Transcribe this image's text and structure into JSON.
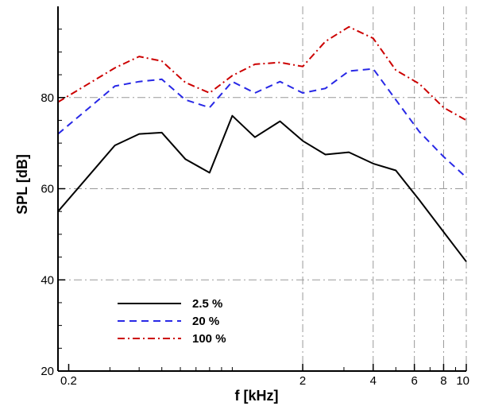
{
  "chart_data": {
    "type": "line",
    "xlabel": "f [kHz]",
    "ylabel": "SPL [dB]",
    "xscale": "log",
    "xlim": [
      0.18,
      10
    ],
    "ylim": [
      20,
      100
    ],
    "x_ticks": [
      {
        "value": 0.2,
        "label": "0.2"
      },
      {
        "value": 2,
        "label": "2"
      },
      {
        "value": 4,
        "label": "4"
      },
      {
        "value": 6,
        "label": "6"
      },
      {
        "value": 8,
        "label": "8"
      },
      {
        "value": 10,
        "label": "10"
      }
    ],
    "y_ticks": [
      {
        "value": 20,
        "label": "20"
      },
      {
        "value": 40,
        "label": "40"
      },
      {
        "value": 60,
        "label": "60"
      },
      {
        "value": 80,
        "label": "80"
      }
    ],
    "x_gridlines": [
      2,
      4,
      6,
      8,
      10
    ],
    "y_gridlines": [
      40,
      60,
      80
    ],
    "grid": true,
    "legend_position": "bottom-left",
    "series": [
      {
        "name": "2.5 %",
        "color": "#000000",
        "dash": "solid",
        "x": [
          0.18,
          0.315,
          0.4,
          0.5,
          0.63,
          0.8,
          1.0,
          1.25,
          1.6,
          2.0,
          2.5,
          3.15,
          4.0,
          5.0,
          6.3,
          8.0,
          10.0
        ],
        "y": [
          55.0,
          69.5,
          72.0,
          72.3,
          66.5,
          63.5,
          76.0,
          71.3,
          74.8,
          70.5,
          67.5,
          68.0,
          65.5,
          64.0,
          57.5,
          50.5,
          44.0
        ]
      },
      {
        "name": "20 %",
        "color": "#2828e6",
        "dash": "dashed",
        "x": [
          0.18,
          0.315,
          0.4,
          0.5,
          0.63,
          0.8,
          1.0,
          1.25,
          1.6,
          2.0,
          2.5,
          3.15,
          4.0,
          5.0,
          6.3,
          8.0,
          10.0
        ],
        "y": [
          72.0,
          82.5,
          83.5,
          84.0,
          79.5,
          77.8,
          83.5,
          81.0,
          83.5,
          81.0,
          82.0,
          85.8,
          86.3,
          79.5,
          72.5,
          67.0,
          62.5
        ]
      },
      {
        "name": "100 %",
        "color": "#cc0000",
        "dash": "dashdot",
        "x": [
          0.18,
          0.315,
          0.4,
          0.5,
          0.63,
          0.8,
          1.0,
          1.25,
          1.6,
          2.0,
          2.5,
          3.15,
          4.0,
          5.0,
          6.3,
          8.0,
          10.0
        ],
        "y": [
          79.0,
          86.5,
          89.0,
          88.0,
          83.3,
          81.0,
          84.8,
          87.3,
          87.7,
          86.8,
          92.3,
          95.5,
          93.0,
          86.0,
          83.0,
          77.8,
          75.0
        ]
      }
    ]
  }
}
